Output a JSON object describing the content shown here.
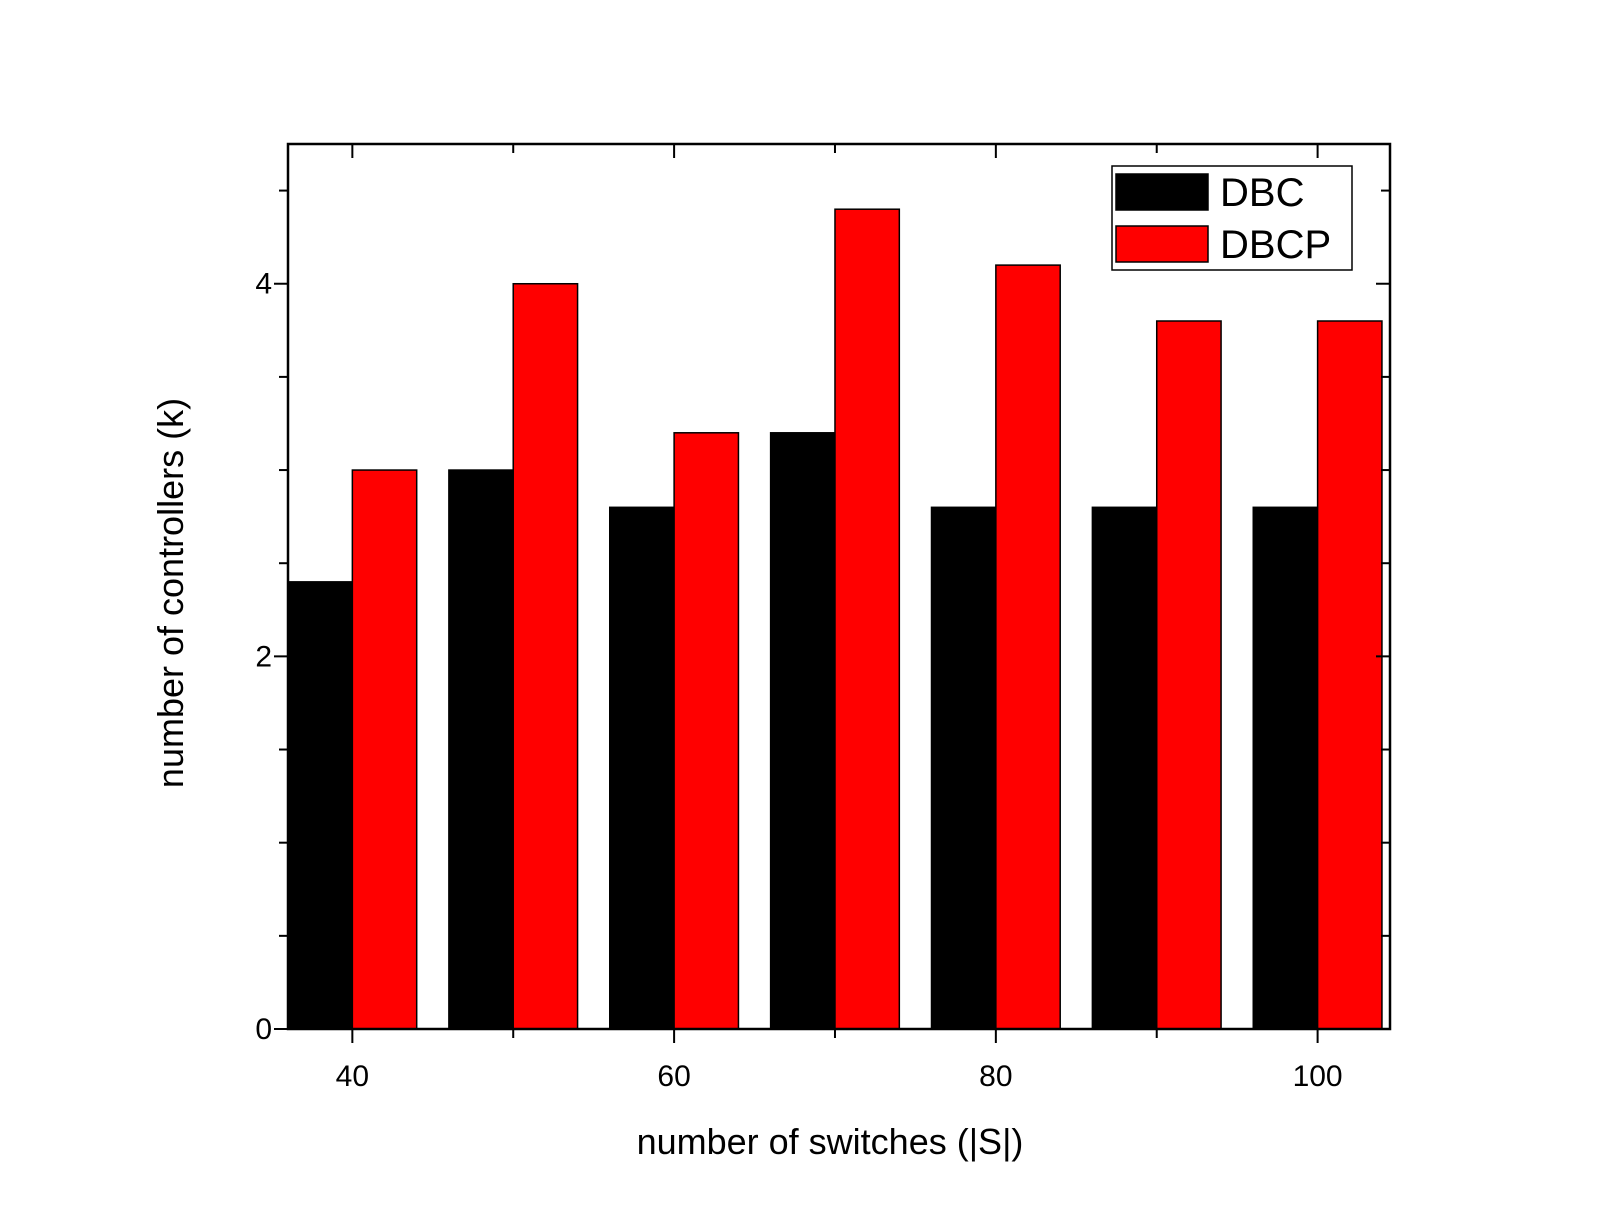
{
  "chart_data": {
    "type": "bar",
    "title": "",
    "xlabel": "number of switches (|S|)",
    "ylabel": "number of controllers (k)",
    "x": [
      40,
      50,
      60,
      70,
      80,
      90,
      100
    ],
    "xticks": [
      "40",
      "60",
      "80",
      "100"
    ],
    "yticks": [
      "0",
      "2",
      "4"
    ],
    "xlim": [
      36,
      104.5
    ],
    "ylim": [
      0,
      4.75
    ],
    "grid": false,
    "legend_position": "top-right",
    "series": [
      {
        "name": "DBC",
        "color": "#000000",
        "values": [
          2.4,
          3.0,
          2.8,
          3.2,
          2.8,
          2.8,
          2.8
        ]
      },
      {
        "name": "DBCP",
        "color": "#ff0000",
        "values": [
          3.0,
          4.0,
          3.2,
          4.4,
          4.1,
          3.8,
          3.8
        ]
      }
    ]
  }
}
